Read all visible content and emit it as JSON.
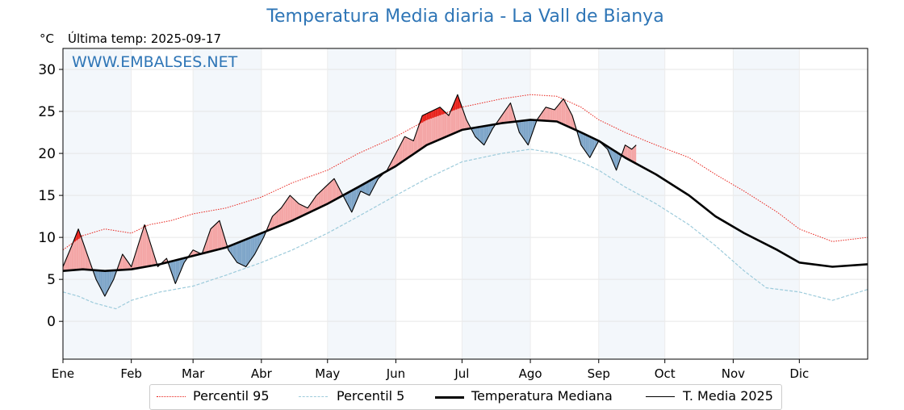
{
  "title": "Temperatura Media diaria - La Vall de Bianya",
  "unit_label": "°C",
  "last_temp_label": "Última temp: 2025-09-17",
  "watermark": "WWW.EMBALSES.NET",
  "chart_data": {
    "type": "line",
    "title": "Temperatura Media diaria - La Vall de Bianya",
    "ylabel": "°C",
    "ylim": [
      -4.5,
      32.5
    ],
    "yticks": [
      0,
      5,
      10,
      15,
      20,
      25,
      30
    ],
    "xlim": [
      1,
      366
    ],
    "month_labels": [
      "Ene",
      "Feb",
      "Mar",
      "Abr",
      "May",
      "Jun",
      "Jul",
      "Ago",
      "Sep",
      "Oct",
      "Nov",
      "Dic"
    ],
    "month_start_days": [
      1,
      32,
      60,
      91,
      121,
      152,
      182,
      213,
      244,
      274,
      305,
      335
    ],
    "grid": true,
    "legend_position": "bottom",
    "series": [
      {
        "name": "Percentil 95",
        "color": "#e8231c",
        "style": "dotted",
        "points": [
          [
            1,
            8.5
          ],
          [
            10,
            10.2
          ],
          [
            20,
            11
          ],
          [
            32,
            10.5
          ],
          [
            40,
            11.5
          ],
          [
            50,
            12
          ],
          [
            60,
            12.8
          ],
          [
            75,
            13.5
          ],
          [
            91,
            14.8
          ],
          [
            105,
            16.5
          ],
          [
            121,
            18
          ],
          [
            135,
            20
          ],
          [
            152,
            22
          ],
          [
            166,
            24
          ],
          [
            182,
            25.5
          ],
          [
            200,
            26.5
          ],
          [
            213,
            27
          ],
          [
            225,
            26.8
          ],
          [
            236,
            25.5
          ],
          [
            244,
            24
          ],
          [
            256,
            22.5
          ],
          [
            270,
            21
          ],
          [
            285,
            19.5
          ],
          [
            297,
            17.5
          ],
          [
            310,
            15.5
          ],
          [
            325,
            13
          ],
          [
            335,
            11
          ],
          [
            350,
            9.5
          ],
          [
            366,
            10
          ]
        ]
      },
      {
        "name": "Percentil 5",
        "color": "#9dcbdb",
        "style": "dashed",
        "points": [
          [
            1,
            3.5
          ],
          [
            8,
            3
          ],
          [
            15,
            2.2
          ],
          [
            25,
            1.5
          ],
          [
            32,
            2.5
          ],
          [
            45,
            3.5
          ],
          [
            60,
            4.2
          ],
          [
            75,
            5.5
          ],
          [
            91,
            7
          ],
          [
            105,
            8.5
          ],
          [
            121,
            10.5
          ],
          [
            135,
            12.5
          ],
          [
            152,
            15
          ],
          [
            166,
            17
          ],
          [
            182,
            19
          ],
          [
            200,
            20
          ],
          [
            213,
            20.5
          ],
          [
            225,
            20
          ],
          [
            236,
            19
          ],
          [
            244,
            18
          ],
          [
            256,
            16
          ],
          [
            270,
            14
          ],
          [
            285,
            11.5
          ],
          [
            297,
            9
          ],
          [
            310,
            6
          ],
          [
            320,
            4
          ],
          [
            335,
            3.5
          ],
          [
            350,
            2.5
          ],
          [
            366,
            3.8
          ]
        ]
      },
      {
        "name": "Temperatura Mediana",
        "color": "#000000",
        "style": "solid-bold",
        "points": [
          [
            1,
            6
          ],
          [
            10,
            6.2
          ],
          [
            20,
            6
          ],
          [
            32,
            6.2
          ],
          [
            45,
            6.8
          ],
          [
            60,
            7.8
          ],
          [
            75,
            8.8
          ],
          [
            91,
            10.5
          ],
          [
            105,
            12
          ],
          [
            121,
            14
          ],
          [
            135,
            16
          ],
          [
            152,
            18.5
          ],
          [
            166,
            21
          ],
          [
            182,
            22.8
          ],
          [
            200,
            23.6
          ],
          [
            213,
            24
          ],
          [
            225,
            23.8
          ],
          [
            236,
            22.5
          ],
          [
            244,
            21.5
          ],
          [
            256,
            19.5
          ],
          [
            270,
            17.5
          ],
          [
            285,
            15
          ],
          [
            297,
            12.5
          ],
          [
            310,
            10.5
          ],
          [
            325,
            8.5
          ],
          [
            335,
            7
          ],
          [
            350,
            6.5
          ],
          [
            366,
            6.8
          ]
        ]
      },
      {
        "name": "T. Media 2025",
        "color": "#000000",
        "style": "solid-thin",
        "points": [
          [
            1,
            6.5
          ],
          [
            5,
            9
          ],
          [
            8,
            11
          ],
          [
            12,
            8
          ],
          [
            16,
            5
          ],
          [
            20,
            3
          ],
          [
            24,
            5
          ],
          [
            28,
            8
          ],
          [
            32,
            6.5
          ],
          [
            35,
            9
          ],
          [
            38,
            11.5
          ],
          [
            41,
            9
          ],
          [
            44,
            6.5
          ],
          [
            48,
            7.5
          ],
          [
            52,
            4.5
          ],
          [
            56,
            7
          ],
          [
            60,
            8.5
          ],
          [
            64,
            8
          ],
          [
            68,
            11
          ],
          [
            72,
            12
          ],
          [
            76,
            8.5
          ],
          [
            80,
            7
          ],
          [
            84,
            6.5
          ],
          [
            88,
            8
          ],
          [
            92,
            10
          ],
          [
            96,
            12.5
          ],
          [
            100,
            13.5
          ],
          [
            104,
            15
          ],
          [
            108,
            14
          ],
          [
            112,
            13.5
          ],
          [
            116,
            15
          ],
          [
            120,
            16
          ],
          [
            124,
            17
          ],
          [
            128,
            15
          ],
          [
            132,
            13
          ],
          [
            136,
            15.5
          ],
          [
            140,
            15
          ],
          [
            144,
            17
          ],
          [
            148,
            18
          ],
          [
            152,
            20
          ],
          [
            156,
            22
          ],
          [
            160,
            21.5
          ],
          [
            164,
            24.5
          ],
          [
            168,
            25
          ],
          [
            172,
            25.5
          ],
          [
            176,
            24.5
          ],
          [
            180,
            27
          ],
          [
            184,
            24
          ],
          [
            188,
            22
          ],
          [
            192,
            21
          ],
          [
            196,
            23
          ],
          [
            200,
            24.5
          ],
          [
            204,
            26
          ],
          [
            208,
            22.5
          ],
          [
            212,
            21
          ],
          [
            216,
            24
          ],
          [
            220,
            25.5
          ],
          [
            224,
            25.2
          ],
          [
            228,
            26.5
          ],
          [
            232,
            24.5
          ],
          [
            236,
            21
          ],
          [
            240,
            19.5
          ],
          [
            244,
            21.5
          ],
          [
            248,
            20.5
          ],
          [
            252,
            18
          ],
          [
            256,
            21
          ],
          [
            259,
            20.5
          ],
          [
            261,
            21
          ]
        ]
      }
    ],
    "fill_colors": {
      "above_median": "#f4a6a6",
      "above_p95": "#e8231c",
      "below_median": "#7fa6c9",
      "below_p5": "#2e6fa3"
    }
  }
}
